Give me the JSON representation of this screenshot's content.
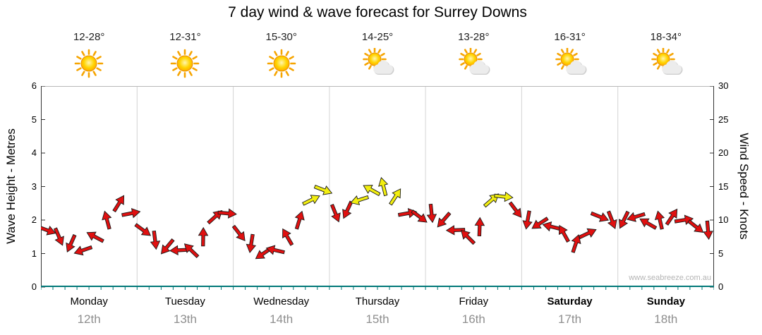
{
  "title": "7 day wind & wave forecast for Surrey Downs",
  "watermark": "www.seabreeze.com.au",
  "forecast": {
    "days": [
      {
        "name": "Monday",
        "date": "12th",
        "temp": "12-28°",
        "icon": "sun",
        "bold": false
      },
      {
        "name": "Tuesday",
        "date": "13th",
        "temp": "12-31°",
        "icon": "sun",
        "bold": false
      },
      {
        "name": "Wednesday",
        "date": "14th",
        "temp": "15-30°",
        "icon": "sun",
        "bold": false
      },
      {
        "name": "Thursday",
        "date": "15th",
        "temp": "14-25°",
        "icon": "sun-cloud",
        "bold": false
      },
      {
        "name": "Friday",
        "date": "16th",
        "temp": "13-28°",
        "icon": "sun-cloud",
        "bold": false
      },
      {
        "name": "Saturday",
        "date": "17th",
        "temp": "16-31°",
        "icon": "sun-cloud",
        "bold": true
      },
      {
        "name": "Sunday",
        "date": "18th",
        "temp": "18-34°",
        "icon": "sun-cloud",
        "bold": true
      }
    ]
  },
  "axes": {
    "left": {
      "title": "Wave Height - Metres",
      "ticks": [
        0,
        1,
        2,
        3,
        4,
        5,
        6
      ],
      "range": [
        0,
        6
      ]
    },
    "right": {
      "title": "Wind Speed - Knots",
      "ticks": [
        0,
        5,
        10,
        15,
        20,
        25,
        30
      ],
      "range": [
        0,
        30
      ]
    }
  },
  "chart_data": {
    "type": "scatter",
    "title": "7 day wind & wave forecast for Surrey Downs",
    "x_categories": [
      "Monday 12th",
      "Tuesday 13th",
      "Wednesday 14th",
      "Thursday 15th",
      "Friday 16th",
      "Saturday 17th",
      "Sunday 18th"
    ],
    "points_per_day": 8,
    "ylabel_left": "Wave Height - Metres",
    "ylabel_right": "Wind Speed - Knots",
    "ylim_left": [
      0,
      6
    ],
    "ylim_right": [
      0,
      30
    ],
    "grid": "vertical-day-separators",
    "legend": "none",
    "marker": "wind-direction-arrow",
    "colors": {
      "red": "#e01010",
      "yellow": "#f2ee10",
      "outline": "#1a1a1a",
      "axis_bottom": "#007878"
    },
    "wind_knots": [
      8.5,
      7.5,
      6.5,
      5.5,
      7.5,
      10,
      12.5,
      11,
      8.5,
      7,
      6,
      5.5,
      5.5,
      7.5,
      10.5,
      11,
      8,
      6.5,
      5,
      5.5,
      7.5,
      10,
      13,
      14.5,
      11,
      11.5,
      13,
      14.5,
      15,
      13.5,
      11,
      10.5,
      11,
      10,
      8.5,
      7.5,
      9,
      13,
      13.5,
      11.5,
      10,
      9.5,
      9,
      8,
      6.5,
      8,
      10.5,
      10,
      10,
      10.5,
      9.5,
      10,
      10.5,
      10,
      9,
      8.5
    ],
    "point_colors": [
      "r",
      "r",
      "r",
      "r",
      "r",
      "r",
      "r",
      "r",
      "r",
      "r",
      "r",
      "r",
      "r",
      "r",
      "r",
      "r",
      "r",
      "r",
      "r",
      "r",
      "r",
      "r",
      "y",
      "y",
      "r",
      "r",
      "y",
      "y",
      "y",
      "y",
      "r",
      "r",
      "r",
      "r",
      "r",
      "r",
      "r",
      "y",
      "y",
      "r",
      "r",
      "r",
      "r",
      "r",
      "r",
      "r",
      "r",
      "r",
      "r",
      "r",
      "r",
      "r",
      "r",
      "r",
      "r",
      "r"
    ],
    "arrow_angles_deg": [
      20,
      67,
      114,
      161,
      208,
      255,
      302,
      349,
      36,
      83,
      130,
      177,
      224,
      271,
      318,
      5,
      52,
      99,
      146,
      193,
      240,
      287,
      334,
      21,
      68,
      115,
      162,
      209,
      256,
      303,
      350,
      37,
      84,
      131,
      178,
      225,
      272,
      319,
      6,
      53,
      100,
      147,
      194,
      241,
      288,
      335,
      22,
      69,
      116,
      163,
      210,
      257,
      304,
      351,
      38,
      85
    ]
  }
}
